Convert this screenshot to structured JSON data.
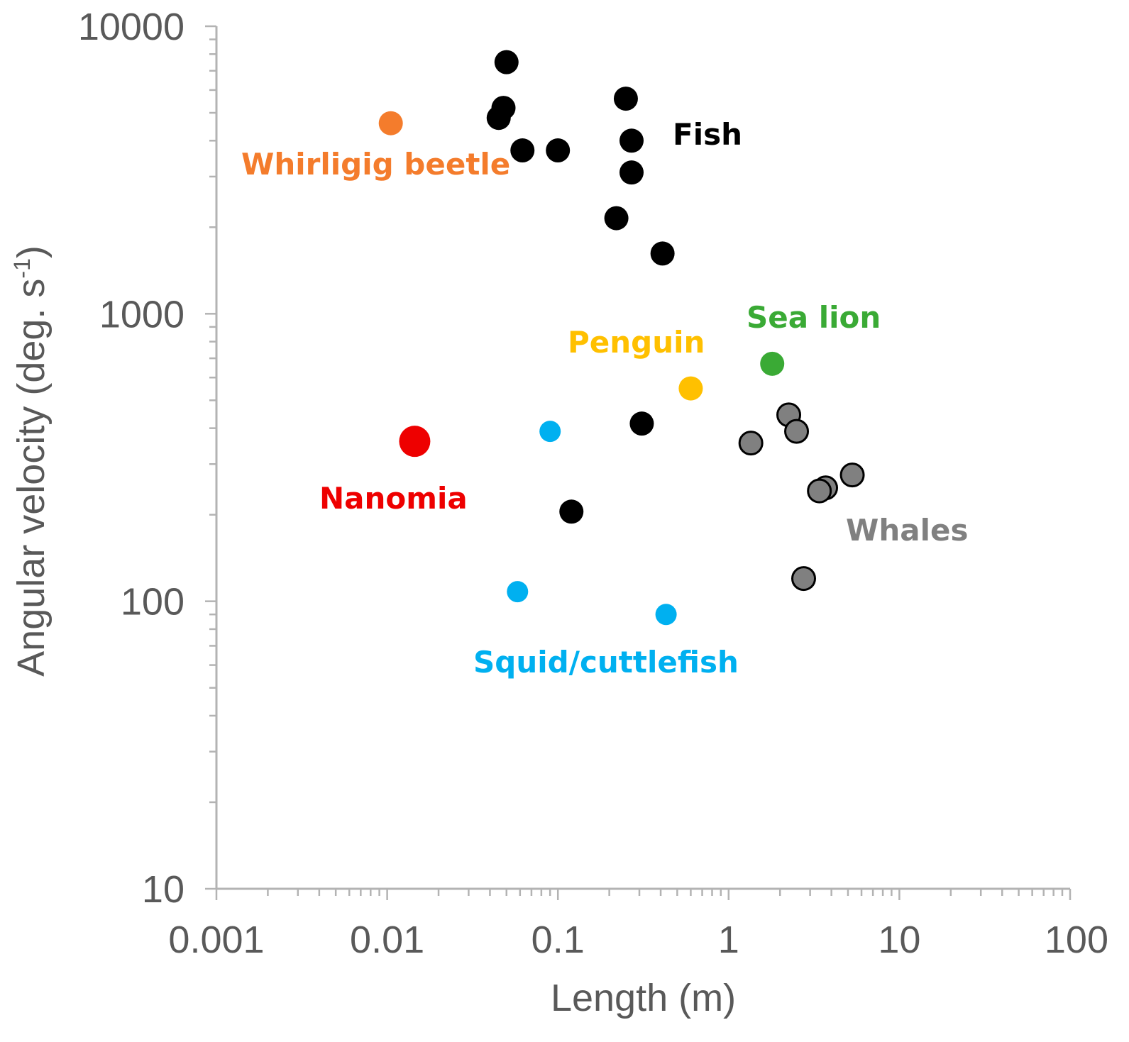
{
  "chart_data": {
    "type": "scatter",
    "xlabel": "Length (m)",
    "ylabel_main": "Angular velocity (deg. s",
    "ylabel_sup": "-1",
    "ylabel_close": ")",
    "x_scale": "log",
    "y_scale": "log",
    "xlim": [
      0.001,
      100
    ],
    "ylim": [
      10,
      10000
    ],
    "x_ticks": [
      {
        "value": 0.001,
        "label": "0.001"
      },
      {
        "value": 0.01,
        "label": "0.01"
      },
      {
        "value": 0.1,
        "label": "0.1"
      },
      {
        "value": 1,
        "label": "1"
      },
      {
        "value": 10,
        "label": "10"
      },
      {
        "value": 100,
        "label": "100"
      }
    ],
    "y_ticks": [
      {
        "value": 10,
        "label": "10"
      },
      {
        "value": 100,
        "label": "100"
      },
      {
        "value": 1000,
        "label": "1000"
      },
      {
        "value": 10000,
        "label": "10000"
      }
    ],
    "grid": false,
    "legend": "none",
    "series": [
      {
        "name": "Fish",
        "color": "#000000",
        "outline": "#000000",
        "points": [
          {
            "x": 0.05,
            "y": 7500
          },
          {
            "x": 0.048,
            "y": 5200
          },
          {
            "x": 0.045,
            "y": 4800
          },
          {
            "x": 0.062,
            "y": 3700
          },
          {
            "x": 0.1,
            "y": 3700
          },
          {
            "x": 0.25,
            "y": 5600
          },
          {
            "x": 0.27,
            "y": 4000
          },
          {
            "x": 0.27,
            "y": 3100
          },
          {
            "x": 0.22,
            "y": 2150
          },
          {
            "x": 0.41,
            "y": 1620
          },
          {
            "x": 0.31,
            "y": 415
          },
          {
            "x": 0.12,
            "y": 205
          }
        ]
      },
      {
        "name": "Whirligig beetle",
        "color": "#f47c2c",
        "outline": "#f47c2c",
        "points": [
          {
            "x": 0.0105,
            "y": 4600
          }
        ]
      },
      {
        "name": "Sea lion",
        "color": "#3aaa35",
        "outline": "#3aaa35",
        "points": [
          {
            "x": 1.8,
            "y": 670
          }
        ]
      },
      {
        "name": "Penguin",
        "color": "#ffc000",
        "outline": "#ffc000",
        "points": [
          {
            "x": 0.6,
            "y": 550
          }
        ]
      },
      {
        "name": "Nanomia",
        "color": "#ee0000",
        "outline": "#ee0000",
        "points": [
          {
            "x": 0.0145,
            "y": 360
          }
        ]
      },
      {
        "name": "Squid/cuttlefish",
        "color": "#00b0f0",
        "outline": "#00b0f0",
        "points": [
          {
            "x": 0.09,
            "y": 390
          },
          {
            "x": 0.058,
            "y": 108
          },
          {
            "x": 0.43,
            "y": 90
          }
        ]
      },
      {
        "name": "Whales",
        "color": "#808080",
        "outline": "#000000",
        "points": [
          {
            "x": 2.25,
            "y": 445
          },
          {
            "x": 2.5,
            "y": 390
          },
          {
            "x": 1.35,
            "y": 355
          },
          {
            "x": 5.3,
            "y": 275
          },
          {
            "x": 3.7,
            "y": 248
          },
          {
            "x": 3.4,
            "y": 242
          },
          {
            "x": 2.75,
            "y": 120
          }
        ]
      }
    ],
    "annotations": [
      {
        "text": "Fish",
        "color": "#000000"
      },
      {
        "text": "Whirligig beetle",
        "color": "#f47c2c"
      },
      {
        "text": "Sea lion",
        "color": "#3aaa35"
      },
      {
        "text": "Penguin",
        "color": "#ffc000"
      },
      {
        "text": "Nanomia",
        "color": "#ee0000"
      },
      {
        "text": "Whales",
        "color": "#808080"
      },
      {
        "text": "Squid/cuttlefish",
        "color": "#00b0f0"
      }
    ]
  }
}
